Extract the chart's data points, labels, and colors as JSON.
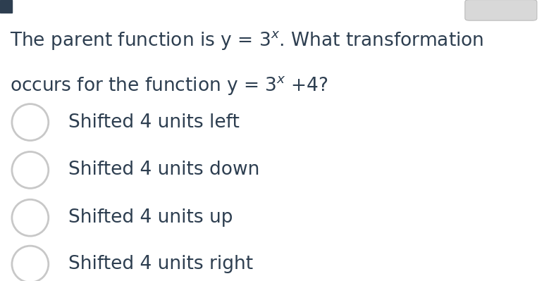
{
  "background_color": "#ffffff",
  "text_color": "#2d3e50",
  "circle_edge_color": "#c8c8c8",
  "options": [
    "Shifted 4 units left",
    "Shifted 4 units down",
    "Shifted 4 units up",
    "Shifted 4 units right"
  ],
  "q_fontsize": 19,
  "opt_fontsize": 19,
  "fig_width": 7.79,
  "fig_height": 3.99,
  "top_rect_color": "#2d3e50",
  "top_right_box_color": "#d8d8d8"
}
